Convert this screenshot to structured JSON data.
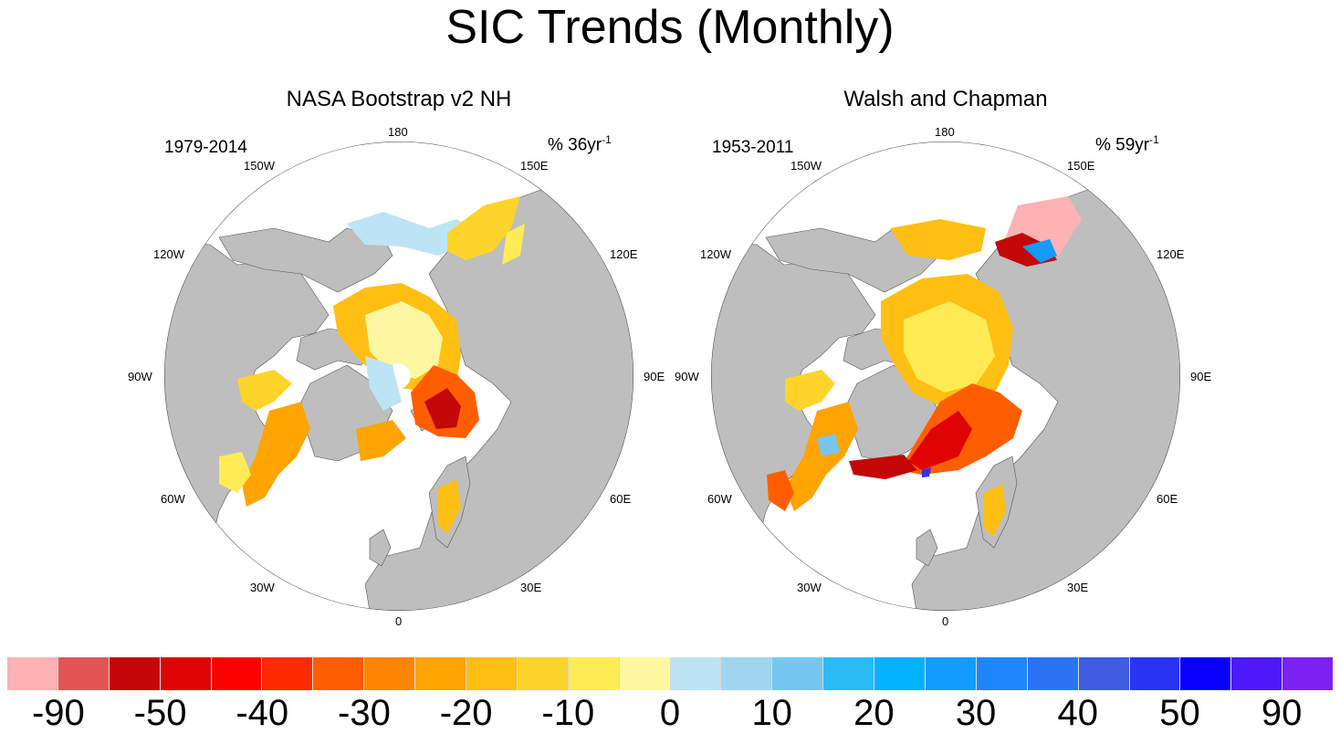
{
  "title": "SIC Trends (Monthly)",
  "panels": [
    {
      "title": "NASA Bootstrap v2 NH",
      "period": "1979-2014",
      "units_prefix": "% 36yr",
      "units_exponent": "-1"
    },
    {
      "title": "Walsh and Chapman",
      "period": "1953-2011",
      "units_prefix": "% 59yr",
      "units_exponent": "-1"
    }
  ],
  "longitude_labels": {
    "top": "180",
    "top_left": "150W",
    "top_right": "150E",
    "upper_left": "120W",
    "upper_right": "120E",
    "left": "90W",
    "right": "90E",
    "lower_left": "60W",
    "lower_right": "60E",
    "bottom_left": "30W",
    "bottom_right": "30E",
    "bottom": "0"
  },
  "colorbar": {
    "colors": [
      "#fdb2b4",
      "#e25555",
      "#c40707",
      "#de0404",
      "#fd0000",
      "#fe2a00",
      "#fe5e00",
      "#fe8502",
      "#ffa401",
      "#ffbf13",
      "#ffd42a",
      "#ffec55",
      "#fef7a2",
      "#bde4f4",
      "#a1d4ef",
      "#76c6f1",
      "#2bbcf5",
      "#03b2fd",
      "#139cfc",
      "#1e86fc",
      "#2b73f5",
      "#3e5de1",
      "#2933f3",
      "#0800ff",
      "#4c19fa",
      "#7b21f3"
    ],
    "labels": [
      "-90",
      "-50",
      "-40",
      "-30",
      "-20",
      "-10",
      "0",
      "10",
      "20",
      "30",
      "40",
      "50",
      "90"
    ]
  },
  "map_colors": {
    "land": "#bebebe",
    "ocean": "#ffffff",
    "outline": "#3a3a3a"
  }
}
